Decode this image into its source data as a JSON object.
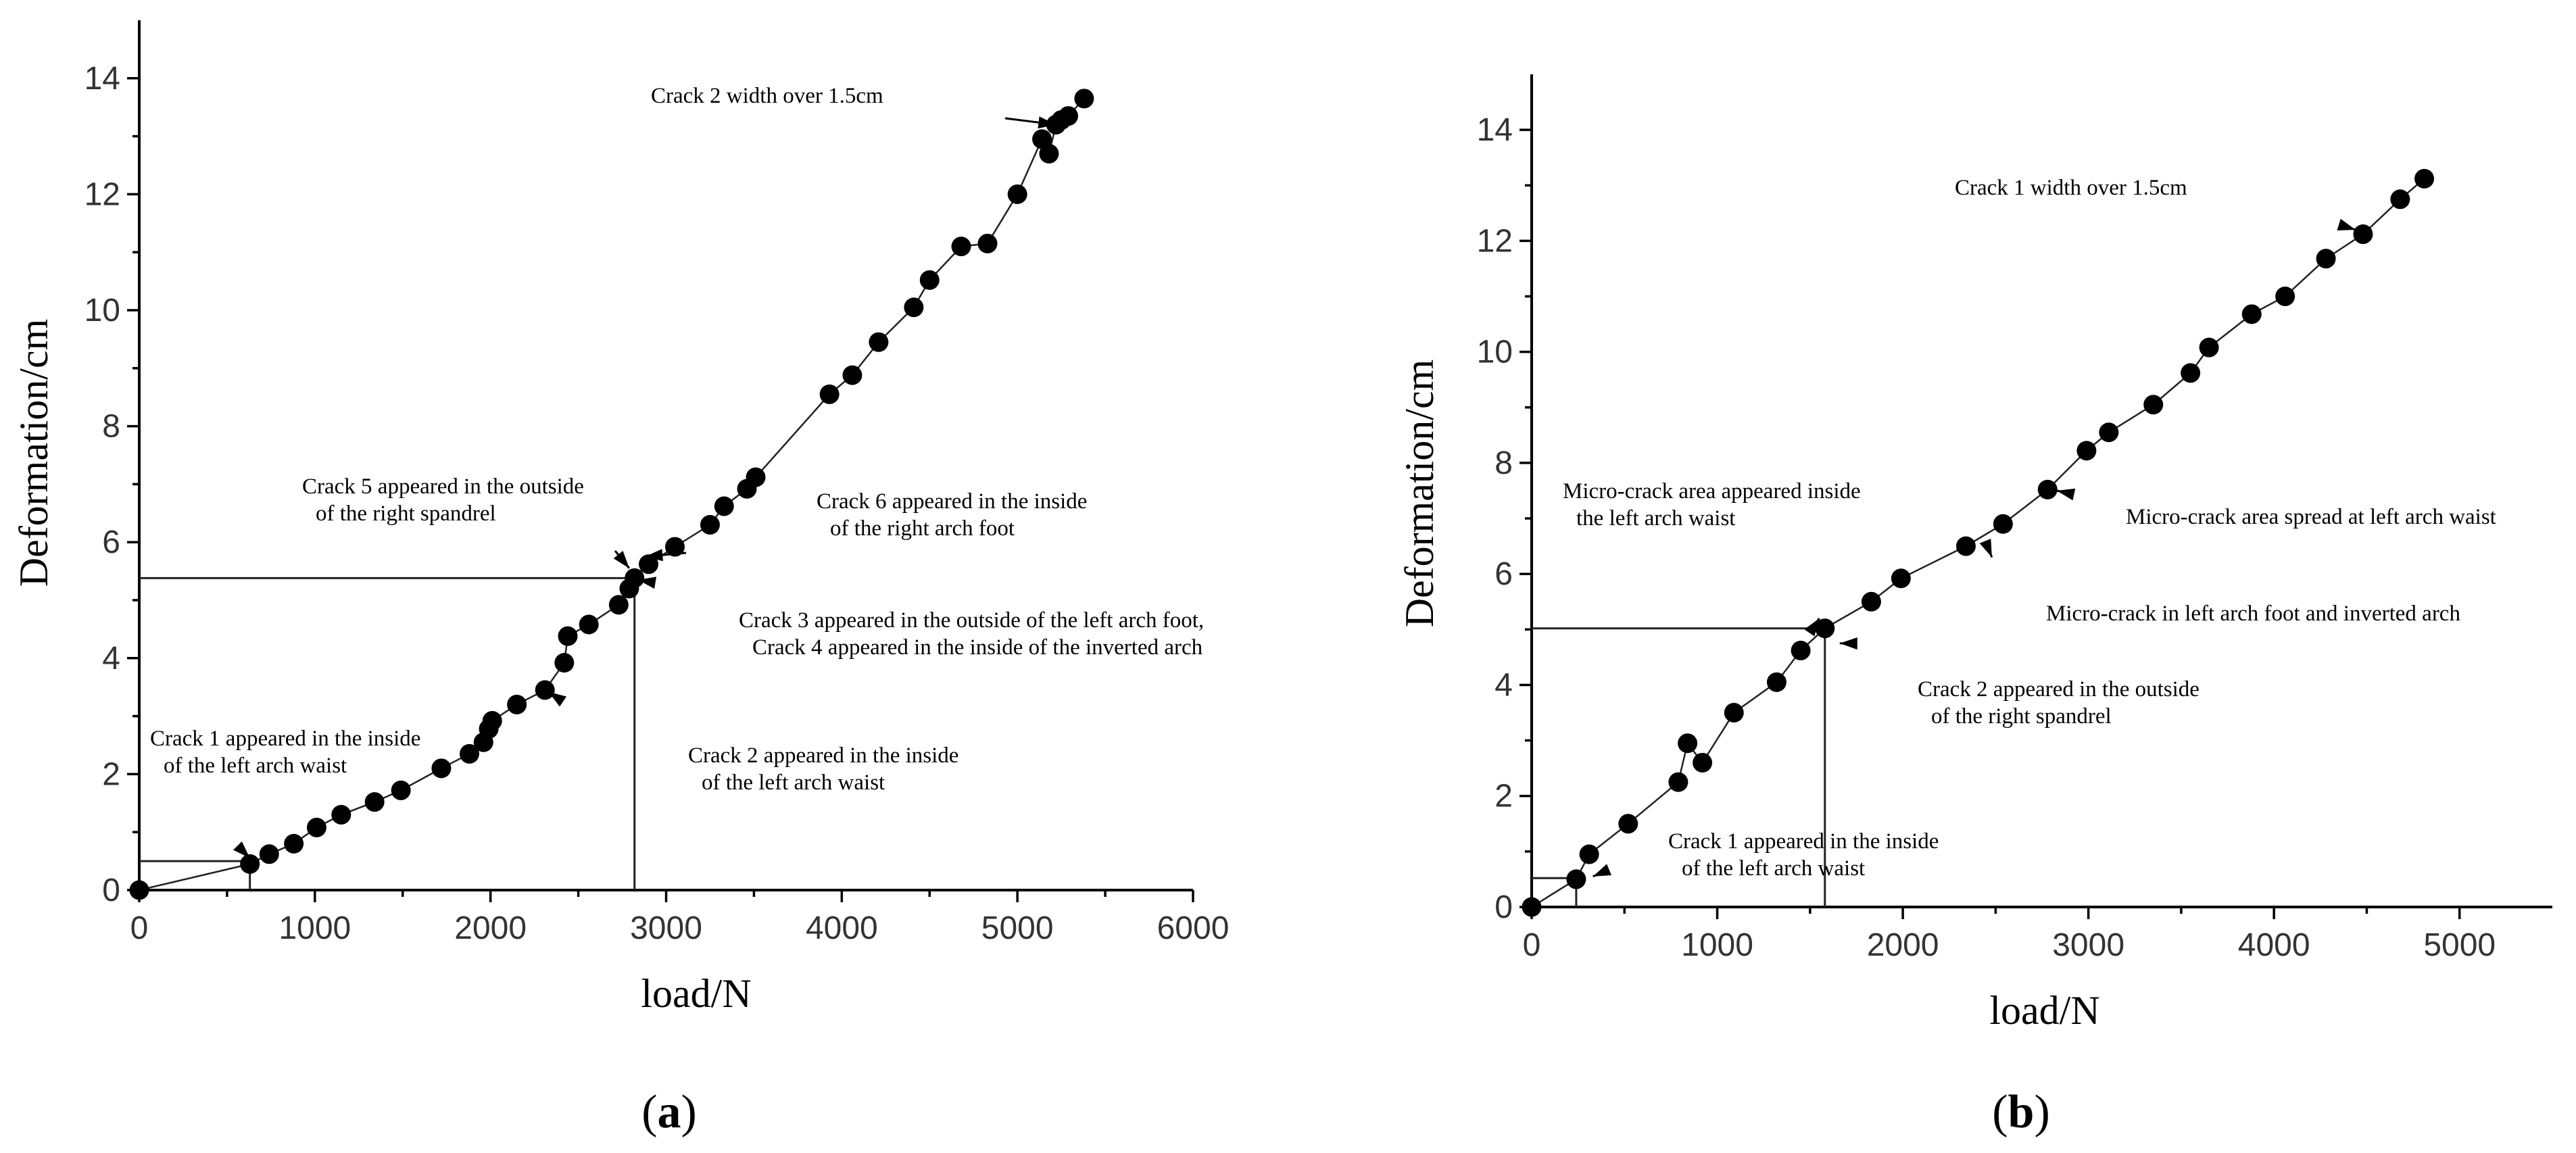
{
  "chart_data": [
    {
      "type": "scatter",
      "panel_label": "a",
      "xlabel": "load/N",
      "ylabel": "Deformation/cm",
      "xlim": [
        0,
        6000
      ],
      "ylim": [
        0,
        15
      ],
      "xticks": [
        0,
        1000,
        2000,
        3000,
        4000,
        5000,
        6000
      ],
      "yticks": [
        0,
        2,
        4,
        6,
        8,
        10,
        12,
        14
      ],
      "x": [
        0,
        630,
        740,
        880,
        1010,
        1150,
        1340,
        1490,
        1720,
        1880,
        1960,
        1990,
        2010,
        2150,
        2310,
        2420,
        2440,
        2560,
        2730,
        2790,
        2820,
        2900,
        3050,
        3250,
        3330,
        3460,
        3510,
        3930,
        4060,
        4210,
        4410,
        4500,
        4680,
        4830,
        5000,
        5140,
        5180,
        5220,
        5250,
        5290,
        5380
      ],
      "y": [
        0,
        0.45,
        0.62,
        0.8,
        1.08,
        1.3,
        1.52,
        1.72,
        2.1,
        2.35,
        2.55,
        2.78,
        2.92,
        3.2,
        3.45,
        3.92,
        4.38,
        4.58,
        4.92,
        5.2,
        5.38,
        5.62,
        5.92,
        6.3,
        6.62,
        6.92,
        7.12,
        8.55,
        8.88,
        9.45,
        10.05,
        10.52,
        11.1,
        11.15,
        12.0,
        12.95,
        12.7,
        13.2,
        13.28,
        13.35,
        13.65
      ],
      "reference_lines": [
        {
          "x": 630,
          "y": 0.5
        },
        {
          "x": 2820,
          "y": 5.38
        }
      ],
      "annotations": [
        {
          "lines": [
            "Crack 2 width over 1.5cm"
          ],
          "x": 5220,
          "y": 13.2
        },
        {
          "lines": [
            "Crack 5 appeared in the outside",
            "of the right spandrel"
          ],
          "x": 2790,
          "y": 5.55
        },
        {
          "lines": [
            "Crack 6 appeared in the inside",
            "of the right arch foot"
          ],
          "x": 2880,
          "y": 5.75
        },
        {
          "lines": [
            "Crack 3 appeared in the outside of the left arch foot,",
            "Crack 4 appeared in the inside of the inverted arch"
          ],
          "x": 2840,
          "y": 5.35
        },
        {
          "lines": [
            "Crack 2 appeared in the inside",
            "of the left arch waist"
          ],
          "x": 2330,
          "y": 3.42
        },
        {
          "lines": [
            "Crack 1 appeared in the inside",
            "of the left arch waist"
          ],
          "x": 630,
          "y": 0.55
        }
      ]
    },
    {
      "type": "scatter",
      "panel_label": "b",
      "xlabel": "load/N",
      "ylabel": "Deformation/cm",
      "xlim": [
        0,
        5500
      ],
      "ylim": [
        0,
        15
      ],
      "xticks": [
        0,
        1000,
        2000,
        3000,
        4000,
        5000
      ],
      "yticks": [
        0,
        2,
        4,
        6,
        8,
        10,
        12,
        14
      ],
      "x": [
        0,
        240,
        310,
        520,
        790,
        840,
        920,
        1090,
        1320,
        1450,
        1580,
        1830,
        1990,
        2340,
        2540,
        2780,
        2990,
        3110,
        3350,
        3550,
        3650,
        3880,
        4060,
        4280,
        4480,
        4680,
        4810
      ],
      "y": [
        0,
        0.5,
        0.95,
        1.5,
        2.25,
        2.95,
        2.6,
        3.5,
        4.05,
        4.62,
        5.02,
        5.5,
        5.92,
        6.5,
        6.9,
        7.52,
        8.22,
        8.55,
        9.05,
        9.62,
        10.08,
        10.68,
        11.0,
        11.68,
        12.12,
        12.75,
        13.12
      ],
      "reference_lines": [
        {
          "x": 240,
          "y": 0.52
        },
        {
          "x": 1580,
          "y": 5.02
        }
      ],
      "annotations": [
        {
          "lines": [
            "Crack 1 width over 1.5cm"
          ],
          "x": 4440,
          "y": 12.2
        },
        {
          "lines": [
            "Micro-crack area appeared inside",
            "the left arch waist"
          ],
          "x": 1550,
          "y": 5.2
        },
        {
          "lines": [
            "Micro-crack area spread at left arch waist"
          ],
          "x": 2830,
          "y": 7.5
        },
        {
          "lines": [
            "Micro-crack in left arch foot and inverted arch"
          ],
          "x": 2480,
          "y": 6.3
        },
        {
          "lines": [
            "Crack 2 appeared in the outside",
            "of the right spandrel"
          ],
          "x": 1660,
          "y": 4.75
        },
        {
          "lines": [
            "Crack 1 appeared in the inside",
            "of the left arch waist"
          ],
          "x": 330,
          "y": 0.55
        }
      ]
    }
  ]
}
